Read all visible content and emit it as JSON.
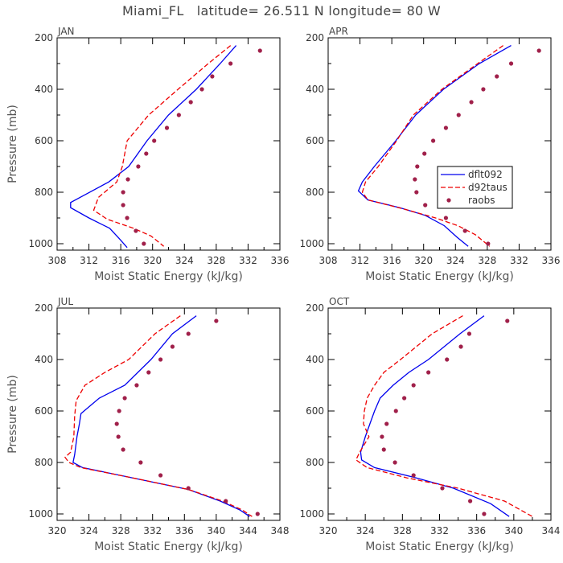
{
  "title": "Miami_FL   latitude= 26.511 N longitude= 80 W",
  "colors": {
    "dflt092": "#0000ee",
    "d92taus": "#ee0000",
    "raobs": "#a0204a"
  },
  "chart_data": [
    {
      "type": "line",
      "month": "JAN",
      "xlabel": "Moist Static Energy (kJ/kg)",
      "ylabel": "Pressure (mb)",
      "xlim": [
        308,
        336
      ],
      "ylim": [
        200,
        1025
      ],
      "xticks": [
        "308",
        "312",
        "316",
        "320",
        "324",
        "328",
        "332",
        "336"
      ],
      "yticks": [
        "200",
        "400",
        "600",
        "800",
        "1000"
      ],
      "ytick_values": [
        200,
        400,
        600,
        800,
        1000
      ],
      "xtick_values": [
        308,
        312,
        316,
        320,
        324,
        328,
        332,
        336
      ],
      "series": [
        {
          "name": "dflt092",
          "style": "solid",
          "points": [
            [
              330.5,
              230
            ],
            [
              328.5,
              300
            ],
            [
              325.5,
              400
            ],
            [
              322,
              500
            ],
            [
              319.3,
              600
            ],
            [
              317,
              700
            ],
            [
              314.5,
              760
            ],
            [
              311.5,
              810
            ],
            [
              309.7,
              840
            ],
            [
              309.7,
              860
            ],
            [
              312,
              900
            ],
            [
              314.6,
              940
            ],
            [
              315.8,
              980
            ],
            [
              316.8,
              1015
            ]
          ]
        },
        {
          "name": "d92taus",
          "style": "dashed",
          "points": [
            [
              329.8,
              230
            ],
            [
              327,
              300
            ],
            [
              323.2,
              400
            ],
            [
              319.5,
              500
            ],
            [
              316.8,
              600
            ],
            [
              316.2,
              700
            ],
            [
              315.5,
              760
            ],
            [
              313.2,
              820
            ],
            [
              312.6,
              870
            ],
            [
              314.3,
              905
            ],
            [
              317.6,
              940
            ],
            [
              319.8,
              970
            ],
            [
              321.4,
              1010
            ]
          ]
        },
        {
          "name": "raobs",
          "style": "dot",
          "points": [
            [
              333.5,
              250
            ],
            [
              329.8,
              300
            ],
            [
              327.5,
              350
            ],
            [
              326.2,
              400
            ],
            [
              324.8,
              450
            ],
            [
              323.3,
              500
            ],
            [
              321.8,
              550
            ],
            [
              320.2,
              600
            ],
            [
              319.2,
              650
            ],
            [
              318.2,
              700
            ],
            [
              316.9,
              750
            ],
            [
              316.3,
              800
            ],
            [
              316.3,
              850
            ],
            [
              316.8,
              900
            ],
            [
              317.9,
              950
            ],
            [
              318.9,
              1000
            ]
          ]
        }
      ]
    },
    {
      "type": "line",
      "month": "APR",
      "xlabel": "Moist Static Energy (kJ/kg)",
      "ylabel": "",
      "xlim": [
        308,
        336
      ],
      "ylim": [
        200,
        1025
      ],
      "xticks": [
        "308",
        "312",
        "316",
        "320",
        "324",
        "328",
        "332",
        "336"
      ],
      "yticks": [
        "200",
        "400",
        "600",
        "800",
        "1000"
      ],
      "ytick_values": [
        200,
        400,
        600,
        800,
        1000
      ],
      "xtick_values": [
        308,
        312,
        316,
        320,
        324,
        328,
        332,
        336
      ],
      "legend": [
        "dflt092",
        "d92taus",
        "raobs"
      ],
      "series": [
        {
          "name": "dflt092",
          "style": "solid",
          "points": [
            [
              331,
              230
            ],
            [
              327,
              300
            ],
            [
              322.5,
              400
            ],
            [
              319,
              500
            ],
            [
              316.5,
              600
            ],
            [
              313.8,
              700
            ],
            [
              312.3,
              760
            ],
            [
              311.8,
              795
            ],
            [
              313,
              830
            ],
            [
              317,
              860
            ],
            [
              320.2,
              890
            ],
            [
              322.6,
              930
            ],
            [
              324.2,
              975
            ],
            [
              325.6,
              1010
            ]
          ]
        },
        {
          "name": "d92taus",
          "style": "dashed",
          "points": [
            [
              330,
              230
            ],
            [
              326.8,
              300
            ],
            [
              322.3,
              400
            ],
            [
              318.7,
              500
            ],
            [
              316.6,
              600
            ],
            [
              314.3,
              700
            ],
            [
              312.7,
              760
            ],
            [
              312.3,
              800
            ],
            [
              313,
              830
            ],
            [
              317.5,
              865
            ],
            [
              321.5,
              900
            ],
            [
              324.3,
              930
            ],
            [
              326.5,
              965
            ],
            [
              328.3,
              1010
            ]
          ]
        },
        {
          "name": "raobs",
          "style": "dot",
          "points": [
            [
              334.5,
              250
            ],
            [
              331,
              300
            ],
            [
              329.2,
              350
            ],
            [
              327.5,
              400
            ],
            [
              326,
              450
            ],
            [
              324.4,
              500
            ],
            [
              322.8,
              550
            ],
            [
              321.2,
              600
            ],
            [
              320.1,
              650
            ],
            [
              319.2,
              700
            ],
            [
              318.9,
              750
            ],
            [
              319.1,
              800
            ],
            [
              320.2,
              850
            ],
            [
              322.8,
              900
            ],
            [
              325.2,
              950
            ],
            [
              328.1,
              1000
            ]
          ]
        }
      ]
    },
    {
      "type": "line",
      "month": "JUL",
      "xlabel": "Moist Static Energy (kJ/kg)",
      "ylabel": "Pressure (mb)",
      "xlim": [
        320,
        348
      ],
      "ylim": [
        200,
        1025
      ],
      "xticks": [
        "320",
        "324",
        "328",
        "332",
        "336",
        "340",
        "344",
        "348"
      ],
      "yticks": [
        "200",
        "400",
        "600",
        "800",
        "1000"
      ],
      "ytick_values": [
        200,
        400,
        600,
        800,
        1000
      ],
      "xtick_values": [
        320,
        324,
        328,
        332,
        336,
        340,
        344,
        348
      ],
      "series": [
        {
          "name": "dflt092",
          "style": "solid",
          "points": [
            [
              337.5,
              230
            ],
            [
              334.5,
              300
            ],
            [
              331.8,
              400
            ],
            [
              328.5,
              500
            ],
            [
              325.3,
              550
            ],
            [
              323,
              610
            ],
            [
              322.8,
              650
            ],
            [
              322.5,
              700
            ],
            [
              322.2,
              770
            ],
            [
              322,
              800
            ],
            [
              323.2,
              820
            ],
            [
              329.5,
              860
            ],
            [
              336.5,
              905
            ],
            [
              340.5,
              950
            ],
            [
              343,
              985
            ],
            [
              344.2,
              1010
            ]
          ]
        },
        {
          "name": "d92taus",
          "style": "dashed",
          "points": [
            [
              335.5,
              230
            ],
            [
              332.3,
              300
            ],
            [
              329,
              400
            ],
            [
              326,
              450
            ],
            [
              323.5,
              500
            ],
            [
              322.4,
              560
            ],
            [
              322.2,
              620
            ],
            [
              322.1,
              700
            ],
            [
              321.7,
              760
            ],
            [
              321,
              780
            ],
            [
              321.5,
              800
            ],
            [
              323,
              820
            ],
            [
              329.5,
              860
            ],
            [
              336.5,
              905
            ],
            [
              340.8,
              950
            ],
            [
              343.3,
              985
            ],
            [
              344.5,
              1010
            ]
          ]
        },
        {
          "name": "raobs",
          "style": "dot",
          "points": [
            [
              340,
              250
            ],
            [
              336.5,
              300
            ],
            [
              334.5,
              350
            ],
            [
              333,
              400
            ],
            [
              331.5,
              450
            ],
            [
              330,
              500
            ],
            [
              328.5,
              550
            ],
            [
              327.8,
              600
            ],
            [
              327.5,
              650
            ],
            [
              327.7,
              700
            ],
            [
              328.3,
              750
            ],
            [
              330.5,
              800
            ],
            [
              333,
              850
            ],
            [
              336.5,
              900
            ],
            [
              341.2,
              950
            ],
            [
              345.2,
              1000
            ]
          ]
        }
      ]
    },
    {
      "type": "line",
      "month": "OCT",
      "xlabel": "Moist Static Energy (kJ/kg)",
      "ylabel": "",
      "xlim": [
        320,
        344
      ],
      "ylim": [
        200,
        1025
      ],
      "xticks": [
        "320",
        "324",
        "328",
        "332",
        "336",
        "340",
        "344"
      ],
      "yticks": [
        "200",
        "400",
        "600",
        "800",
        "1000"
      ],
      "ytick_values": [
        200,
        400,
        600,
        800,
        1000
      ],
      "xtick_values": [
        320,
        324,
        328,
        332,
        336,
        340,
        344
      ],
      "series": [
        {
          "name": "dflt092",
          "style": "solid",
          "points": [
            [
              336.8,
              230
            ],
            [
              334.2,
              300
            ],
            [
              330.8,
              400
            ],
            [
              328.7,
              450
            ],
            [
              327,
              500
            ],
            [
              325.6,
              550
            ],
            [
              325,
              600
            ],
            [
              324.5,
              650
            ],
            [
              324,
              700
            ],
            [
              323.5,
              760
            ],
            [
              323.6,
              790
            ],
            [
              325,
              820
            ],
            [
              329.5,
              860
            ],
            [
              333.5,
              900
            ],
            [
              337.5,
              960
            ],
            [
              339.5,
              1010
            ]
          ]
        },
        {
          "name": "d92taus",
          "style": "dashed",
          "points": [
            [
              334.5,
              230
            ],
            [
              331.2,
              300
            ],
            [
              327.8,
              400
            ],
            [
              326,
              450
            ],
            [
              325,
              500
            ],
            [
              324.2,
              550
            ],
            [
              323.9,
              600
            ],
            [
              323.8,
              650
            ],
            [
              324.4,
              700
            ],
            [
              323.4,
              760
            ],
            [
              323,
              790
            ],
            [
              324.2,
              820
            ],
            [
              328.5,
              860
            ],
            [
              334,
              900
            ],
            [
              339,
              950
            ],
            [
              342,
              1010
            ]
          ]
        },
        {
          "name": "raobs",
          "style": "dot",
          "points": [
            [
              339.3,
              250
            ],
            [
              335.2,
              300
            ],
            [
              334.3,
              350
            ],
            [
              332.8,
              400
            ],
            [
              330.8,
              450
            ],
            [
              329.2,
              500
            ],
            [
              328.2,
              550
            ],
            [
              327.3,
              600
            ],
            [
              326.3,
              650
            ],
            [
              325.8,
              700
            ],
            [
              326,
              750
            ],
            [
              327.2,
              800
            ],
            [
              329.2,
              850
            ],
            [
              332.3,
              900
            ],
            [
              335.3,
              950
            ],
            [
              336.8,
              1000
            ]
          ]
        }
      ]
    }
  ]
}
